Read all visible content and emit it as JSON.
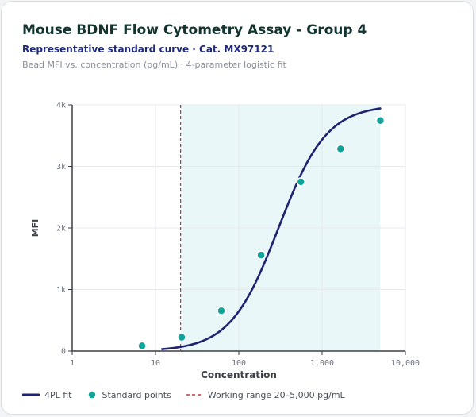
{
  "header": {
    "title": "Mouse BDNF Flow Cytometry Assay - Group 4",
    "subtitle": "Representative standard curve · Cat. MX97121",
    "caption": "Bead MFI vs. concentration (pg/mL) · 4-parameter logistic fit"
  },
  "legend": {
    "fit_label": "4PL fit",
    "points_label": "Standard points",
    "range_label": "Working range 20–5,000 pg/mL"
  },
  "colors": {
    "fit": "#1f2270",
    "points": "#12a39a",
    "range_line": "#c9353f",
    "range_fill": "#eaf7f8"
  },
  "chart_data": {
    "type": "scatter",
    "xlabel": "Concentration",
    "ylabel": "MFI",
    "x_scale": "log",
    "xlim": [
      1,
      10000
    ],
    "ylim": [
      0,
      4000
    ],
    "x_ticks": [
      1,
      10,
      100,
      1000,
      10000
    ],
    "x_tick_labels": [
      "1",
      "10",
      "100",
      "1,000",
      "10,000"
    ],
    "y_ticks": [
      0,
      1000,
      2000,
      3000,
      4000
    ],
    "y_tick_labels": [
      "0",
      "1k",
      "2k",
      "3k",
      "4k"
    ],
    "grid": true,
    "legend_position": "bottom",
    "working_range": [
      20,
      5000
    ],
    "series": [
      {
        "name": "Standard points",
        "points": [
          {
            "x": 6.9,
            "y": 85
          },
          {
            "x": 20.6,
            "y": 225
          },
          {
            "x": 61.7,
            "y": 655
          },
          {
            "x": 185,
            "y": 1560
          },
          {
            "x": 556,
            "y": 2750
          },
          {
            "x": 1667,
            "y": 3285
          },
          {
            "x": 5000,
            "y": 3745
          }
        ]
      },
      {
        "name": "4PL fit",
        "fit": {
          "A": 0,
          "B": 1.5,
          "C": 300,
          "D": 4000
        },
        "x_range": [
          12,
          5000
        ]
      }
    ]
  }
}
